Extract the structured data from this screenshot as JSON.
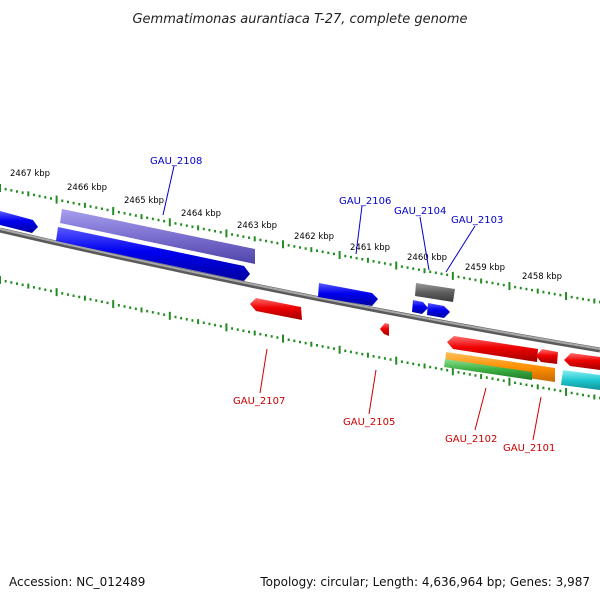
{
  "title": "Gemmatimonas aurantiaca T-27, complete genome",
  "footer": {
    "accession": "Accession: NC_012489",
    "summary": "Topology: circular; Length: 4,636,964 bp; Genes: 3,987"
  },
  "scale_ticks": [
    "2467 kbp",
    "2466 kbp",
    "2465 kbp",
    "2464 kbp",
    "2463 kbp",
    "2462 kbp",
    "2461 kbp",
    "2460 kbp",
    "2459 kbp",
    "2458 kbp"
  ],
  "genes": {
    "plus_strand": [
      "GAU_2108",
      "GAU_2106",
      "GAU_2104",
      "GAU_2103"
    ],
    "minus_strand": [
      "GAU_2107",
      "GAU_2105",
      "GAU_2102",
      "GAU_2101"
    ]
  },
  "colors": {
    "plus_label": "#0000cc",
    "minus_label": "#cc0000",
    "backbone": "#808080",
    "tick": "#228b22",
    "cds_blue": "#0000e6",
    "cds_purple": "#7a6fcf",
    "cds_red": "#e60000",
    "cds_gray": "#666666",
    "cds_orange": "#ff8c00",
    "cds_green": "#3cb043",
    "cds_cyan": "#20c8d0"
  }
}
